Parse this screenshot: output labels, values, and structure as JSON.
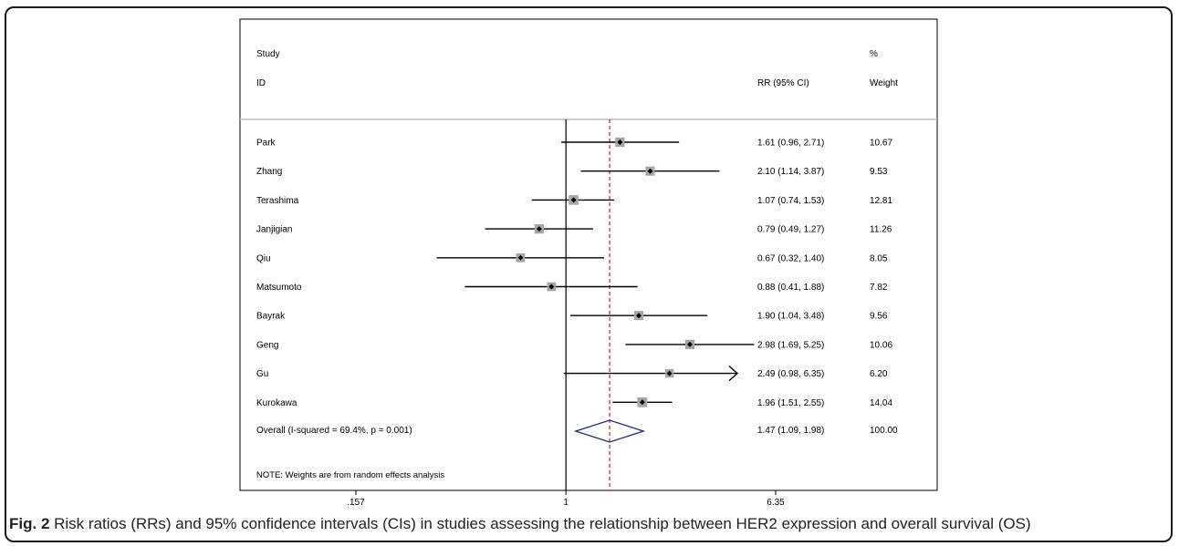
{
  "chart_data": {
    "type": "forest",
    "header": {
      "study_line1": "Study",
      "study_line2": "ID",
      "rr_header": "RR (95% CI)",
      "weight_line1": "%",
      "weight_line2": "Weight"
    },
    "null_value": 1,
    "pooled_estimate": 1.47,
    "x_scale": "log",
    "x_range": [
      0.157,
      6.35
    ],
    "x_ticks": [
      {
        "value": 0.157,
        "label": ".157"
      },
      {
        "value": 1,
        "label": "1"
      },
      {
        "value": 6.35,
        "label": "6.35"
      }
    ],
    "studies": [
      {
        "name": "Park",
        "rr": 1.61,
        "lo": 0.96,
        "hi": 2.71,
        "rr_text": "1.61 (0.96, 2.71)",
        "weight": 10.67,
        "weight_text": "10.67"
      },
      {
        "name": "Zhang",
        "rr": 2.1,
        "lo": 1.14,
        "hi": 3.87,
        "rr_text": "2.10 (1.14, 3.87)",
        "weight": 9.53,
        "weight_text": "9.53"
      },
      {
        "name": "Terashima",
        "rr": 1.07,
        "lo": 0.74,
        "hi": 1.53,
        "rr_text": "1.07 (0.74, 1.53)",
        "weight": 12.81,
        "weight_text": "12.81"
      },
      {
        "name": "Janjigian",
        "rr": 0.79,
        "lo": 0.49,
        "hi": 1.27,
        "rr_text": "0.79 (0.49, 1.27)",
        "weight": 11.26,
        "weight_text": "11.26"
      },
      {
        "name": "Qiu",
        "rr": 0.67,
        "lo": 0.32,
        "hi": 1.4,
        "rr_text": "0.67 (0.32, 1.40)",
        "weight": 8.05,
        "weight_text": "8.05"
      },
      {
        "name": "Matsumoto",
        "rr": 0.88,
        "lo": 0.41,
        "hi": 1.88,
        "rr_text": "0.88 (0.41, 1.88)",
        "weight": 7.82,
        "weight_text": "7.82"
      },
      {
        "name": "Bayrak",
        "rr": 1.9,
        "lo": 1.04,
        "hi": 3.48,
        "rr_text": "1.90 (1.04, 3.48)",
        "weight": 9.56,
        "weight_text": "9.56"
      },
      {
        "name": "Geng",
        "rr": 2.98,
        "lo": 1.69,
        "hi": 5.25,
        "rr_text": "2.98 (1.69, 5.25)",
        "weight": 10.06,
        "weight_text": "10.06"
      },
      {
        "name": "Gu",
        "rr": 2.49,
        "lo": 0.98,
        "hi": 6.35,
        "rr_text": "2.49 (0.98, 6.35)",
        "weight": 6.2,
        "weight_text": "6.20",
        "truncated_right": true
      },
      {
        "name": "Kurokawa",
        "rr": 1.96,
        "lo": 1.51,
        "hi": 2.55,
        "rr_text": "1.96 (1.51, 2.55)",
        "weight": 14.04,
        "weight_text": "14.04"
      }
    ],
    "overall": {
      "name": "Overall  (I-squared = 69.4%, p = 0.001)",
      "rr": 1.47,
      "lo": 1.09,
      "hi": 1.98,
      "rr_text": "1.47 (1.09, 1.98)",
      "weight_text": "100.00"
    },
    "note": "NOTE: Weights are from random effects analysis",
    "colors": {
      "ci_line": "#000000",
      "box": "#a6a6a6",
      "point": "#000000",
      "diamond": "#1f2a6b",
      "pooled_line": "#b03030",
      "null_line": "#000000",
      "header_rule": "#bbbbbb"
    }
  },
  "caption": {
    "label": "Fig. 2",
    "text": " Risk ratios (RRs) and 95% confidence intervals (CIs) in studies assessing the relationship between HER2 expression and overall survival (OS)"
  }
}
